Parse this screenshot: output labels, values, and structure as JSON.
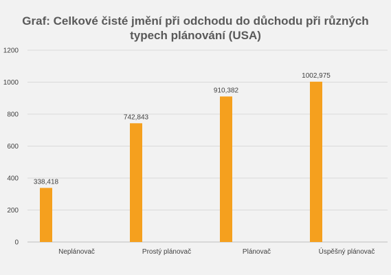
{
  "chart_data": {
    "type": "bar",
    "title": "Graf: Celkové čisté jmění při odchodu do důchodu při různých typech plánování (USA)",
    "xlabel": "",
    "ylabel": "",
    "categories": [
      "Neplánovač",
      "Prostý plánovač",
      "Plánovač",
      "Úspěšný plánovač"
    ],
    "values": [
      338.418,
      742.843,
      910.382,
      1002.975
    ],
    "data_labels": [
      "338,418",
      "742,843",
      "910,382",
      "1002,975"
    ],
    "ylim": [
      0,
      1200
    ],
    "yticks": [
      0,
      200,
      400,
      600,
      800,
      1000,
      1200
    ],
    "ytick_labels": [
      "0",
      "200",
      "400",
      "600",
      "800",
      "1000",
      "1200"
    ],
    "grid": true,
    "legend": "none",
    "colors": {
      "bar": "#f5a01e",
      "grid": "#d9d9d9",
      "axis": "#bfbfbf",
      "background": "#f2f2f2",
      "title": "#595959"
    }
  }
}
